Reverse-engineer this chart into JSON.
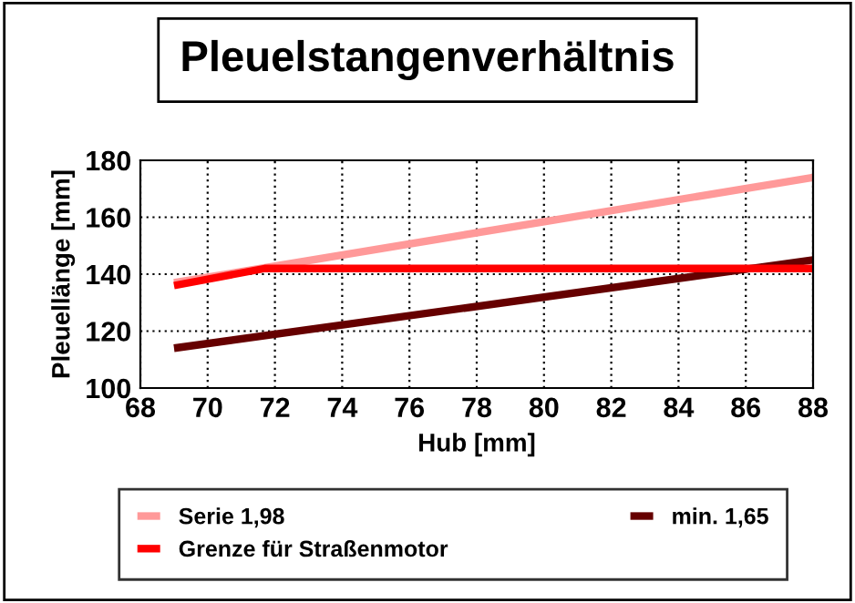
{
  "chart_data": {
    "type": "line",
    "title": "Pleuelstangenverhältnis",
    "xlabel": "Hub [mm]",
    "ylabel": "Pleuellänge [mm]",
    "xlim": [
      68,
      88
    ],
    "xticks": [
      68,
      70,
      72,
      74,
      76,
      78,
      80,
      82,
      84,
      86,
      88
    ],
    "ylim": [
      100,
      180
    ],
    "yticks": [
      100,
      120,
      140,
      160,
      180
    ],
    "grid": true,
    "legend": "bottom",
    "marker": "none",
    "line_style": "solid",
    "series": [
      {
        "name": "Serie 1,98",
        "color": "#ff9999",
        "x": [
          69,
          88
        ],
        "values": [
          137,
          174
        ]
      },
      {
        "name": "min. 1,65",
        "color": "#660000",
        "x": [
          69,
          88
        ],
        "values": [
          114,
          145
        ]
      },
      {
        "name": "Grenze für Straßenmotor",
        "color": "#ff0000",
        "x": [
          69,
          71.7,
          88
        ],
        "values": [
          136,
          142,
          142
        ]
      }
    ]
  }
}
